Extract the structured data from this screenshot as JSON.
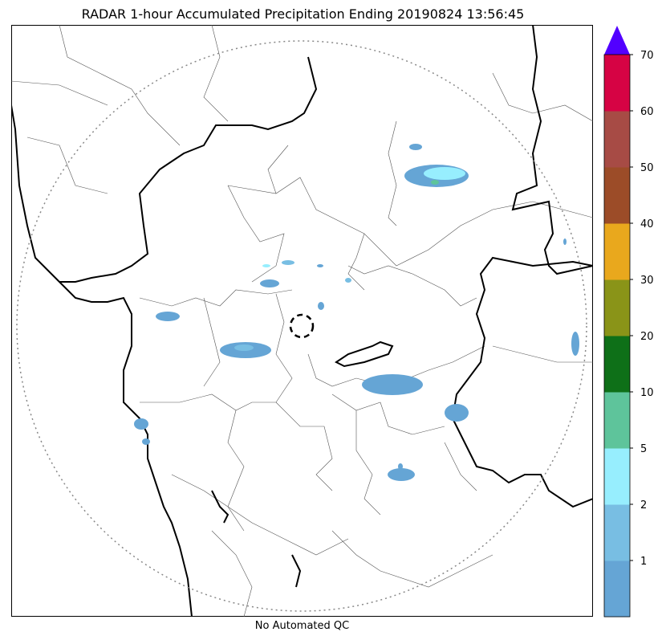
{
  "title": "RADAR 1-hour Accumulated Precipitation Ending 20190824 13:56:45",
  "subtitle": "No Automated QC",
  "colorbar": {
    "levels": [
      {
        "label": "",
        "color": "#65a5d5"
      },
      {
        "label": "1",
        "color": "#78bee3"
      },
      {
        "label": "2",
        "color": "#97eefe"
      },
      {
        "label": "5",
        "color": "#5ec49b"
      },
      {
        "label": "10",
        "color": "#0e7018"
      },
      {
        "label": "20",
        "color": "#8a9418"
      },
      {
        "label": "30",
        "color": "#e9a81d"
      },
      {
        "label": "40",
        "color": "#9c4c28"
      },
      {
        "label": "50",
        "color": "#a74b45"
      },
      {
        "label": "60",
        "color": "#d60344"
      }
    ],
    "top_label": "70",
    "extend_color": "#5200ff"
  },
  "colors": {
    "boundary": "#000000",
    "district": "#555555",
    "range_ring": "#888888"
  }
}
